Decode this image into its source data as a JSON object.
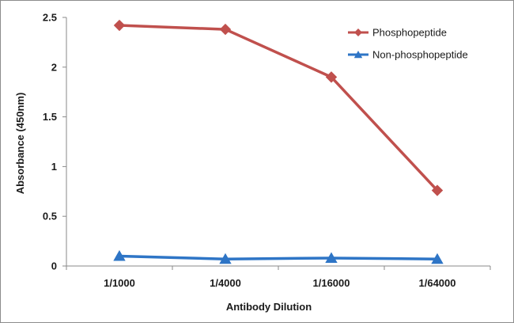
{
  "chart_data": {
    "type": "line",
    "title": "",
    "xlabel": "Antibody Dilution",
    "ylabel": "Absorbance (450nm)",
    "categories": [
      "1/1000",
      "1/4000",
      "1/16000",
      "1/64000"
    ],
    "ylim": [
      0,
      2.5
    ],
    "yticks": [
      0,
      0.5,
      1,
      1.5,
      2,
      2.5
    ],
    "ytick_labels": [
      "0",
      "0.5",
      "1",
      "1.5",
      "2",
      "2.5"
    ],
    "grid": false,
    "legend_position": "top-right",
    "series": [
      {
        "name": "Phosphopeptide",
        "values": [
          2.42,
          2.38,
          1.9,
          0.76
        ],
        "color": "#c0504d",
        "marker": "diamond"
      },
      {
        "name": "Non-phosphopeptide",
        "values": [
          0.1,
          0.07,
          0.08,
          0.07
        ],
        "color": "#2e75c6",
        "marker": "triangle"
      }
    ]
  }
}
